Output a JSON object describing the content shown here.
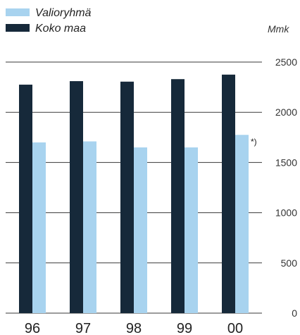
{
  "chart_data": {
    "type": "bar",
    "categories": [
      "96",
      "97",
      "98",
      "99",
      "00"
    ],
    "series": [
      {
        "name": "Koko maa",
        "color": "#16293a",
        "values": [
          2275,
          2310,
          2305,
          2330,
          2375
        ]
      },
      {
        "name": "Valioryhmä",
        "color": "#a8d3ef",
        "values": [
          1700,
          1710,
          1650,
          1650,
          1775
        ]
      }
    ],
    "ylabel": "Mmk",
    "ylim": [
      0,
      2500
    ],
    "yticks": [
      0,
      500,
      1000,
      1500,
      2000,
      2500
    ],
    "grid": true,
    "legend_position": "top-left",
    "annotation": {
      "text": "*)",
      "series": "Valioryhmä",
      "category": "00"
    }
  }
}
